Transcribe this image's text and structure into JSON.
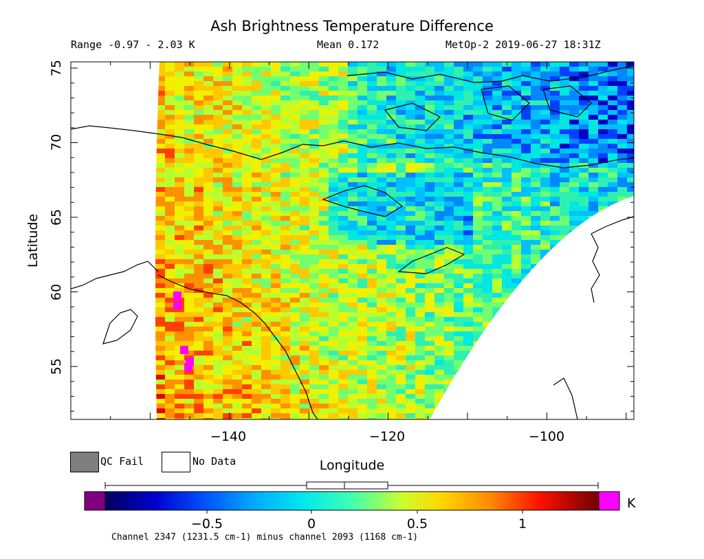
{
  "title": "Ash Brightness Temperature Difference",
  "header": {
    "range": "Range -0.97 - 2.03 K",
    "mean": "Mean 0.172",
    "satellite": "MetOp-2 2019-06-27 18:31Z"
  },
  "axes": {
    "xlabel": "Longitude",
    "ylabel": "Latitude",
    "x_ticks": [
      "−140",
      "−120",
      "−100"
    ],
    "y_ticks": [
      "75",
      "70",
      "65",
      "60",
      "55"
    ]
  },
  "legend": {
    "qc_fail": "QC Fail",
    "no_data": "No Data",
    "qc_color": "#7f7f7f",
    "nodata_color": "#ffffff"
  },
  "colorbar": {
    "ticks": [
      "−0.5",
      "0",
      "0.5",
      "1"
    ],
    "unit": "K",
    "under_color": "#7f007f",
    "over_color": "#ff00ff"
  },
  "footer": "Channel 2347 (1231.5 cm-1) minus channel 2093 (1168 cm-1)"
}
